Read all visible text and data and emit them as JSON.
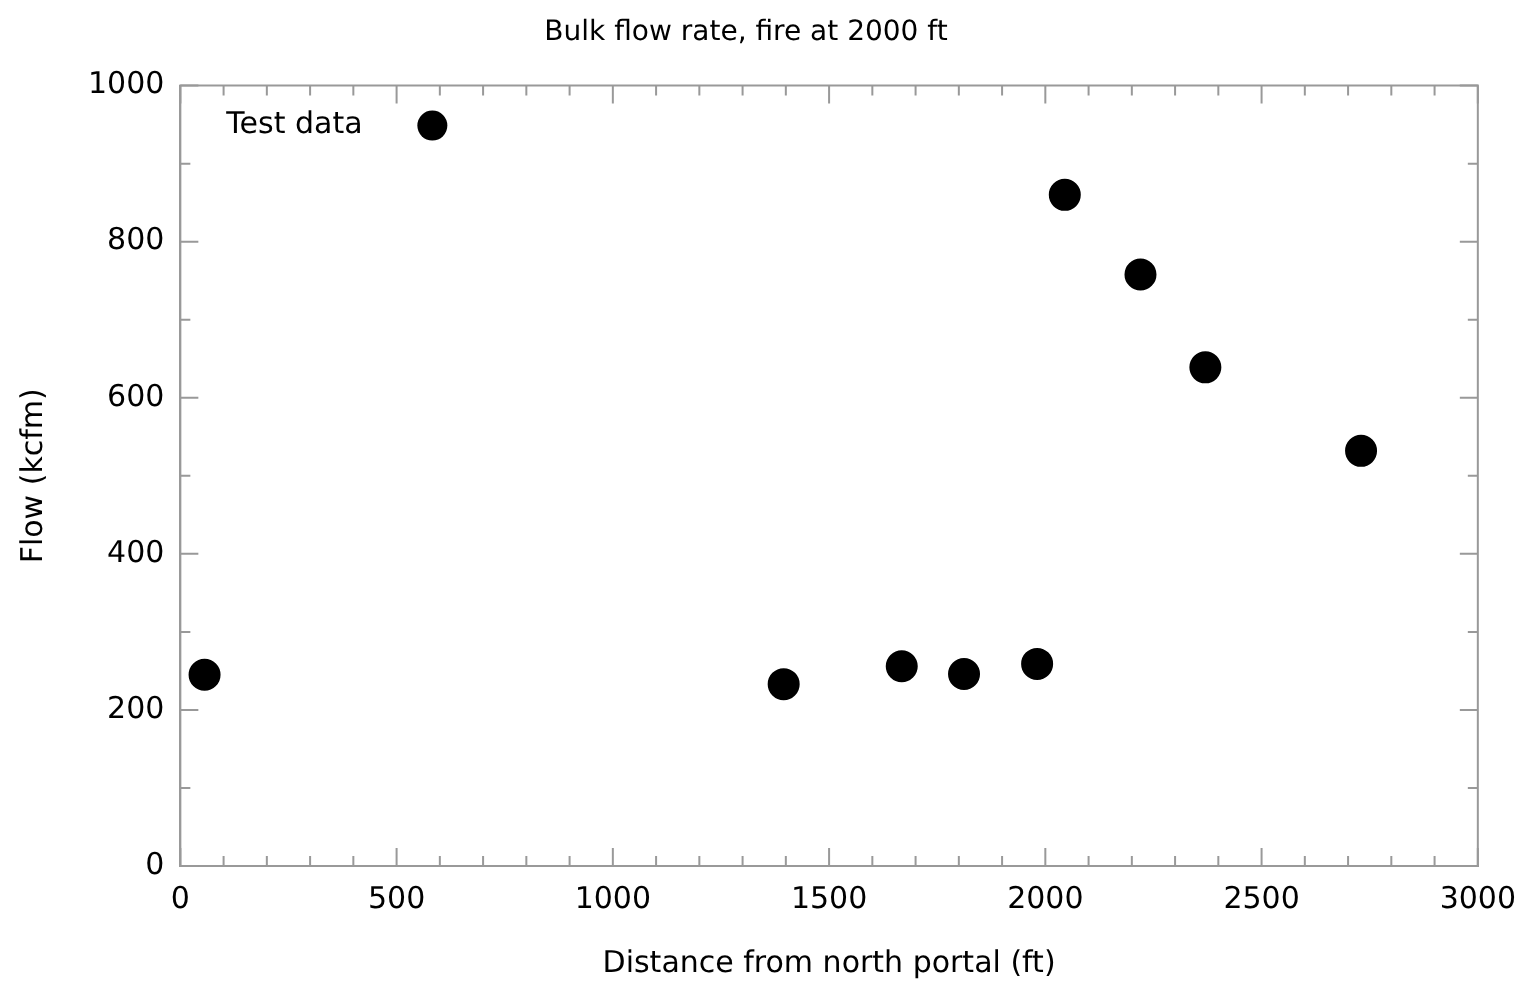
{
  "chart_data": {
    "type": "scatter",
    "title": "Bulk flow rate, fire at 2000 ft",
    "xlabel": "Distance from north portal (ft)",
    "ylabel": "Flow (kcfm)",
    "x": [
      56,
      1395,
      1668,
      1812,
      1981,
      2045,
      2220,
      2370,
      2730
    ],
    "series": [
      {
        "name": "Test data",
        "color": "#000000",
        "values": [
          245,
          233,
          256,
          246,
          259,
          860,
          758,
          639,
          532
        ]
      }
    ],
    "xlim": [
      0,
      3000
    ],
    "ylim": [
      0,
      1000
    ],
    "xticks": [
      0,
      {
        "value": 100,
        "label": null
      },
      {
        "value": 200,
        "label": null
      },
      {
        "value": 300,
        "label": null
      },
      {
        "value": 400,
        "label": null
      },
      500,
      {
        "value": 600,
        "label": null
      },
      {
        "value": 700,
        "label": null
      },
      {
        "value": 800,
        "label": null
      },
      {
        "value": 900,
        "label": null
      },
      1000,
      {
        "value": 1100,
        "label": null
      },
      {
        "value": 1200,
        "label": null
      },
      {
        "value": 1300,
        "label": null
      },
      {
        "value": 1400,
        "label": null
      },
      1500,
      {
        "value": 1600,
        "label": null
      },
      {
        "value": 1700,
        "label": null
      },
      {
        "value": 1800,
        "label": null
      },
      {
        "value": 1900,
        "label": null
      },
      2000,
      {
        "value": 2100,
        "label": null
      },
      {
        "value": 2200,
        "label": null
      },
      {
        "value": 2300,
        "label": null
      },
      {
        "value": 2400,
        "label": null
      },
      2500,
      {
        "value": 2600,
        "label": null
      },
      {
        "value": 2700,
        "label": null
      },
      {
        "value": 2800,
        "label": null
      },
      {
        "value": 2900,
        "label": null
      },
      3000
    ],
    "yticks": [
      0,
      {
        "value": 100,
        "label": null
      },
      200,
      {
        "value": 300,
        "label": null
      },
      400,
      {
        "value": 500,
        "label": null
      },
      600,
      {
        "value": 700,
        "label": null
      },
      800,
      {
        "value": 900,
        "label": null
      },
      1000
    ],
    "grid": false,
    "legend": "top left",
    "marker": "circle"
  }
}
